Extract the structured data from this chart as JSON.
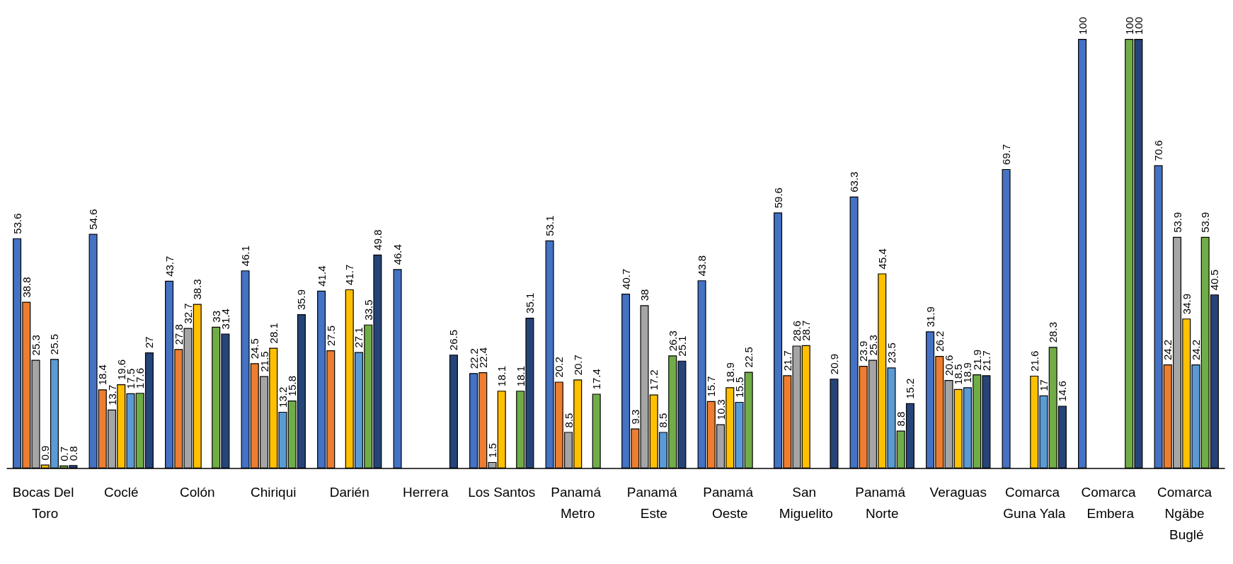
{
  "chart_data": {
    "type": "bar",
    "categories": [
      "Bocas Del Toro",
      "Coclé",
      "Colón",
      "Chiriqui",
      "Darién",
      "Herrera",
      "Los Santos",
      "Panamá Metro",
      "Panamá Este",
      "Panamá Oeste",
      "San Miguelito",
      "Panamá Norte",
      "Veraguas",
      "Comarca Guna Yala",
      "Comarca Embera",
      "Comarca Ngäbe Buglé"
    ],
    "series": [
      {
        "color": "#4472c4",
        "values": [
          53.6,
          54.6,
          43.7,
          46.1,
          41.4,
          46.4,
          22.2,
          53.1,
          40.7,
          43.8,
          59.6,
          63.3,
          31.9,
          69.7,
          100,
          70.6
        ]
      },
      {
        "color": "#ed7d31",
        "values": [
          38.8,
          18.4,
          27.8,
          24.5,
          27.5,
          null,
          22.4,
          20.2,
          9.3,
          15.7,
          21.7,
          23.9,
          26.2,
          null,
          null,
          24.2
        ]
      },
      {
        "color": "#a5a5a5",
        "values": [
          25.3,
          13.7,
          32.7,
          21.5,
          null,
          null,
          1.5,
          8.5,
          38,
          10.3,
          28.6,
          25.3,
          20.6,
          null,
          null,
          53.9
        ]
      },
      {
        "color": "#ffc000",
        "values": [
          0.9,
          19.6,
          38.3,
          28.1,
          41.7,
          null,
          18.1,
          20.7,
          17.2,
          18.9,
          28.7,
          45.4,
          18.5,
          21.6,
          null,
          34.9
        ]
      },
      {
        "color": "#5b9bd5",
        "values": [
          25.5,
          17.5,
          null,
          13.2,
          27.1,
          null,
          null,
          null,
          8.5,
          15.5,
          null,
          23.5,
          18.9,
          17,
          null,
          24.2
        ]
      },
      {
        "color": "#70ad47",
        "values": [
          0.7,
          17.6,
          33,
          15.8,
          33.5,
          null,
          18.1,
          17.4,
          26.3,
          22.5,
          null,
          8.8,
          21.9,
          28.3,
          100,
          53.9
        ]
      },
      {
        "color": "#264478",
        "values": [
          0.8,
          27,
          31.4,
          35.9,
          49.8,
          26.5,
          35.1,
          null,
          25.1,
          null,
          20.9,
          15.2,
          21.7,
          14.6,
          100,
          40.5
        ]
      }
    ],
    "data_labels": true,
    "tick_labels": "x"
  }
}
